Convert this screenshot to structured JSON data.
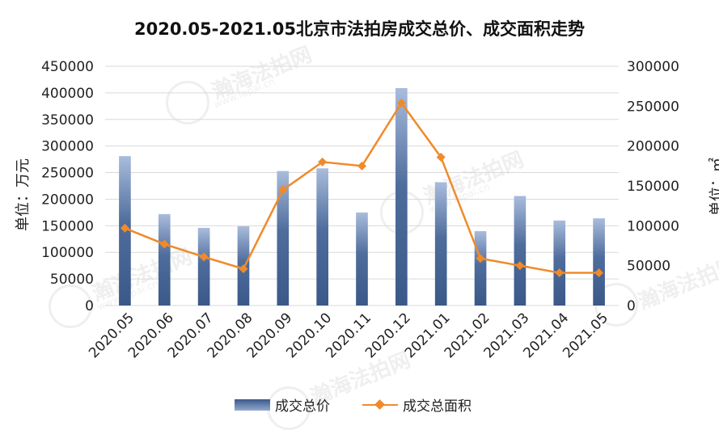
{
  "watermark": {
    "name": "瀚海法拍网",
    "url": "www.fapai.cn"
  },
  "chart_data": {
    "type": "bar",
    "title": "2020.05-2021.05北京市法拍房成交总价、成交面积走势",
    "categories": [
      "2020.05",
      "2020.06",
      "2020.07",
      "2020.08",
      "2020.09",
      "2020.10",
      "2020.11",
      "2020.12",
      "2021.01",
      "2021.02",
      "2021.03",
      "2021.04",
      "2021.05"
    ],
    "y1": {
      "label": "单位：万元",
      "ylim": [
        0,
        450000
      ],
      "ticks": [
        "0",
        "50000",
        "100000",
        "150000",
        "200000",
        "250000",
        "300000",
        "350000",
        "400000",
        "450000"
      ]
    },
    "y2": {
      "label": "单位：㎡",
      "ylim": [
        0,
        300000
      ],
      "ticks": [
        "0",
        "50000",
        "100000",
        "150000",
        "200000",
        "250000",
        "300000"
      ]
    },
    "series": [
      {
        "name": "成交总价",
        "type": "bar",
        "axis": "y1",
        "color": "#3a5888",
        "values": [
          281000,
          172000,
          146000,
          149000,
          253000,
          258000,
          175000,
          409000,
          232000,
          140000,
          206000,
          160000,
          164000
        ]
      },
      {
        "name": "成交总面积",
        "type": "line",
        "axis": "y2",
        "color": "#f08a2a",
        "values": [
          97000,
          77000,
          61000,
          46000,
          145000,
          180000,
          175000,
          254000,
          186000,
          59000,
          50000,
          41000,
          41000
        ]
      }
    ],
    "legend": "bottom",
    "grid": true
  }
}
